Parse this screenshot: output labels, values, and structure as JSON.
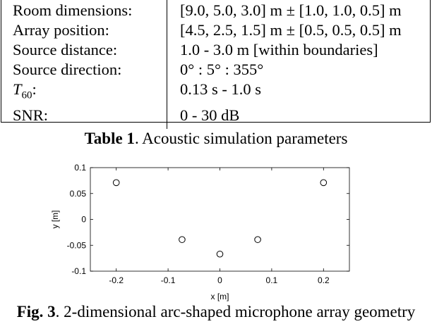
{
  "table": {
    "rows": [
      {
        "param": "Room dimensions:",
        "value": "[9.0, 5.0, 3.0] m ± [1.0, 1.0, 0.5] m"
      },
      {
        "param": "Array position:",
        "value": "[4.5, 2.5, 1.5] m ± [0.5, 0.5, 0.5] m"
      },
      {
        "param": "Source distance:",
        "value": "1.0 - 3.0 m [within boundaries]"
      },
      {
        "param": "Source direction:",
        "value": "0° : 5° : 355°"
      },
      {
        "param_main": "T",
        "param_sub": "60",
        "param_tail": ":",
        "value": "0.13 s - 1.0 s"
      },
      {
        "param": "SNR:",
        "value": "0 - 30 dB"
      }
    ],
    "caption_label": "Table 1",
    "caption_text": ". Acoustic simulation parameters"
  },
  "figure": {
    "caption_label": "Fig. 3",
    "caption_text": ". 2-dimensional arc-shaped microphone array geometry"
  },
  "chart_data": {
    "type": "scatter",
    "xlabel": "x [m]",
    "ylabel": "y [m]",
    "xlim": [
      -0.25,
      0.25
    ],
    "ylim": [
      -0.1,
      0.1
    ],
    "xticks": [
      -0.2,
      -0.1,
      0,
      0.1,
      0.2
    ],
    "xtick_labels": [
      "-0.2",
      "-0.1",
      "0",
      "0.1",
      "0.2"
    ],
    "yticks": [
      -0.1,
      -0.05,
      0,
      0.05,
      0.1
    ],
    "ytick_labels": [
      "-0.1",
      "-0.05",
      "0",
      "0.05",
      "0.1"
    ],
    "grid": false,
    "marker": "open-circle",
    "points": [
      {
        "x": -0.2,
        "y": 0.071
      },
      {
        "x": -0.073,
        "y": -0.039
      },
      {
        "x": 0.0,
        "y": -0.067
      },
      {
        "x": 0.073,
        "y": -0.039
      },
      {
        "x": 0.2,
        "y": 0.071
      }
    ]
  }
}
